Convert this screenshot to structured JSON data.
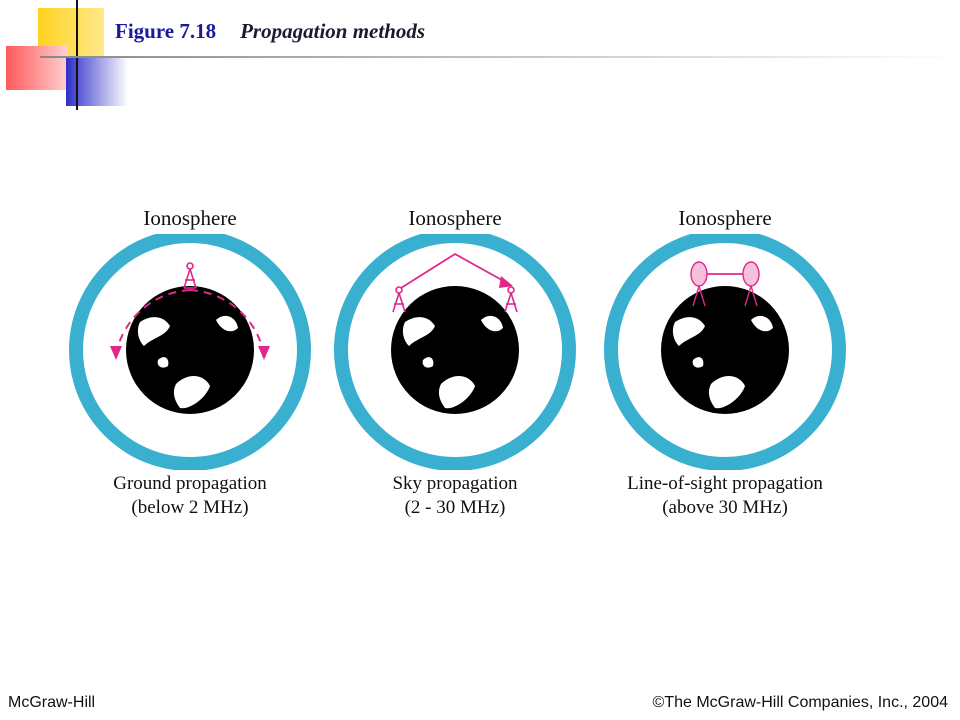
{
  "header": {
    "figure_number": "Figure 7.18",
    "figure_title": "Propagation methods"
  },
  "panels": [
    {
      "ionosphere_label": "Ionosphere",
      "caption_line1": "Ground propagation",
      "caption_line2": "(below 2 MHz)"
    },
    {
      "ionosphere_label": "Ionosphere",
      "caption_line1": "Sky propagation",
      "caption_line2": "(2 - 30 MHz)"
    },
    {
      "ionosphere_label": "Ionosphere",
      "caption_line1": "Line-of-sight propagation",
      "caption_line2": "(above 30 MHz)"
    }
  ],
  "footer": {
    "publisher": "McGraw-Hill",
    "copyright": "©The McGraw-Hill Companies, Inc., 2004"
  },
  "colors": {
    "ionosphere_ring": "#3ab0d0",
    "signal": "#e0288a",
    "earth": "#000000",
    "title_blue": "#1a1a99",
    "deco_yellow": "#ffd21f",
    "deco_red": "#ff4a4a",
    "deco_blue": "#3a3acc"
  }
}
